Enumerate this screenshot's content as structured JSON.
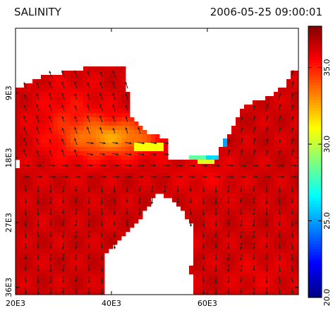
{
  "header": {
    "title": "SALINITY",
    "timestamp": "2006-05-25 09:00:01"
  },
  "chart_data": {
    "type": "heatmap",
    "title": "SALINITY",
    "x_ticks": [
      "20E3",
      "40E3",
      "60E3"
    ],
    "x_tick_values": [
      20000,
      40000,
      60000
    ],
    "xlim": [
      20000,
      79000
    ],
    "y_ticks": [
      "9E3",
      "18E3",
      "27E3",
      "36E3"
    ],
    "y_tick_values": [
      9000,
      18000,
      27000,
      36000
    ],
    "ylim": [
      0,
      37000
    ],
    "y_inverted": true,
    "colorbar": {
      "ticks": [
        "20.0",
        "25.0",
        "30.0",
        "35.0"
      ],
      "tick_values": [
        20,
        25,
        30,
        35
      ],
      "range": [
        20.0,
        37.7
      ],
      "colormap": "jet"
    },
    "vectors": true,
    "colors": {
      "frame": "#000000",
      "background": "#ffffff",
      "arrow": "#222222"
    }
  }
}
